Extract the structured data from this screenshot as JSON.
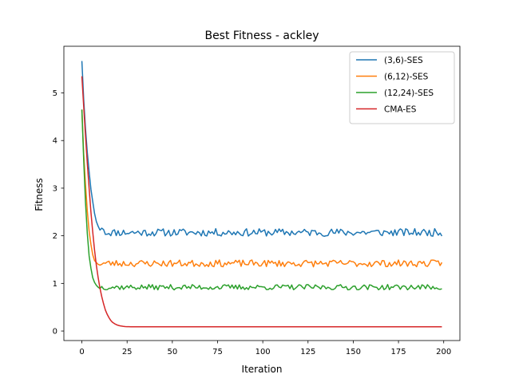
{
  "chart_data": {
    "type": "line",
    "title": "Best Fitness - ackley",
    "xlabel": "Iteration",
    "ylabel": "Fitness",
    "xlim": [
      -9.95,
      208.95
    ],
    "ylim": [
      -0.2,
      5.98
    ],
    "xticks": [
      0,
      25,
      50,
      75,
      100,
      125,
      150,
      175,
      200
    ],
    "yticks": [
      0,
      1,
      2,
      3,
      4,
      5
    ],
    "grid": false,
    "legend_position": "top-right",
    "series": [
      {
        "name": "(3,6)-SES",
        "color": "#1f77b4",
        "head": [
          5.67,
          4.87,
          4.25,
          3.75,
          3.35,
          2.98,
          2.72,
          2.47,
          2.3,
          2.2,
          2.12,
          2.16,
          2.13
        ],
        "plateau": 2.07,
        "noise": 0.05,
        "seed": 11
      },
      {
        "name": "(6,12)-SES",
        "color": "#ff7f0e",
        "head": [
          4.65,
          3.72,
          3.08,
          2.52,
          2.1,
          1.82,
          1.6,
          1.48,
          1.44,
          1.4
        ],
        "plateau": 1.42,
        "noise": 0.045,
        "seed": 23
      },
      {
        "name": "(12,24)-SES",
        "color": "#2ca02c",
        "head": [
          4.65,
          3.6,
          2.7,
          2.05,
          1.58,
          1.32,
          1.12,
          1.02,
          0.96,
          0.92
        ],
        "plateau": 0.92,
        "noise": 0.035,
        "seed": 37
      },
      {
        "name": "CMA-ES",
        "color": "#d62728",
        "head": [
          5.35,
          4.72,
          4.1,
          3.52,
          3.0,
          2.5,
          2.08,
          1.7,
          1.38,
          1.12,
          0.9,
          0.72,
          0.57,
          0.44,
          0.35,
          0.28,
          0.22,
          0.18,
          0.155,
          0.135,
          0.12,
          0.11,
          0.103,
          0.098,
          0.094,
          0.092,
          0.09
        ],
        "plateau": 0.088,
        "noise": 0.0,
        "seed": 5
      }
    ],
    "n_points": 200
  }
}
